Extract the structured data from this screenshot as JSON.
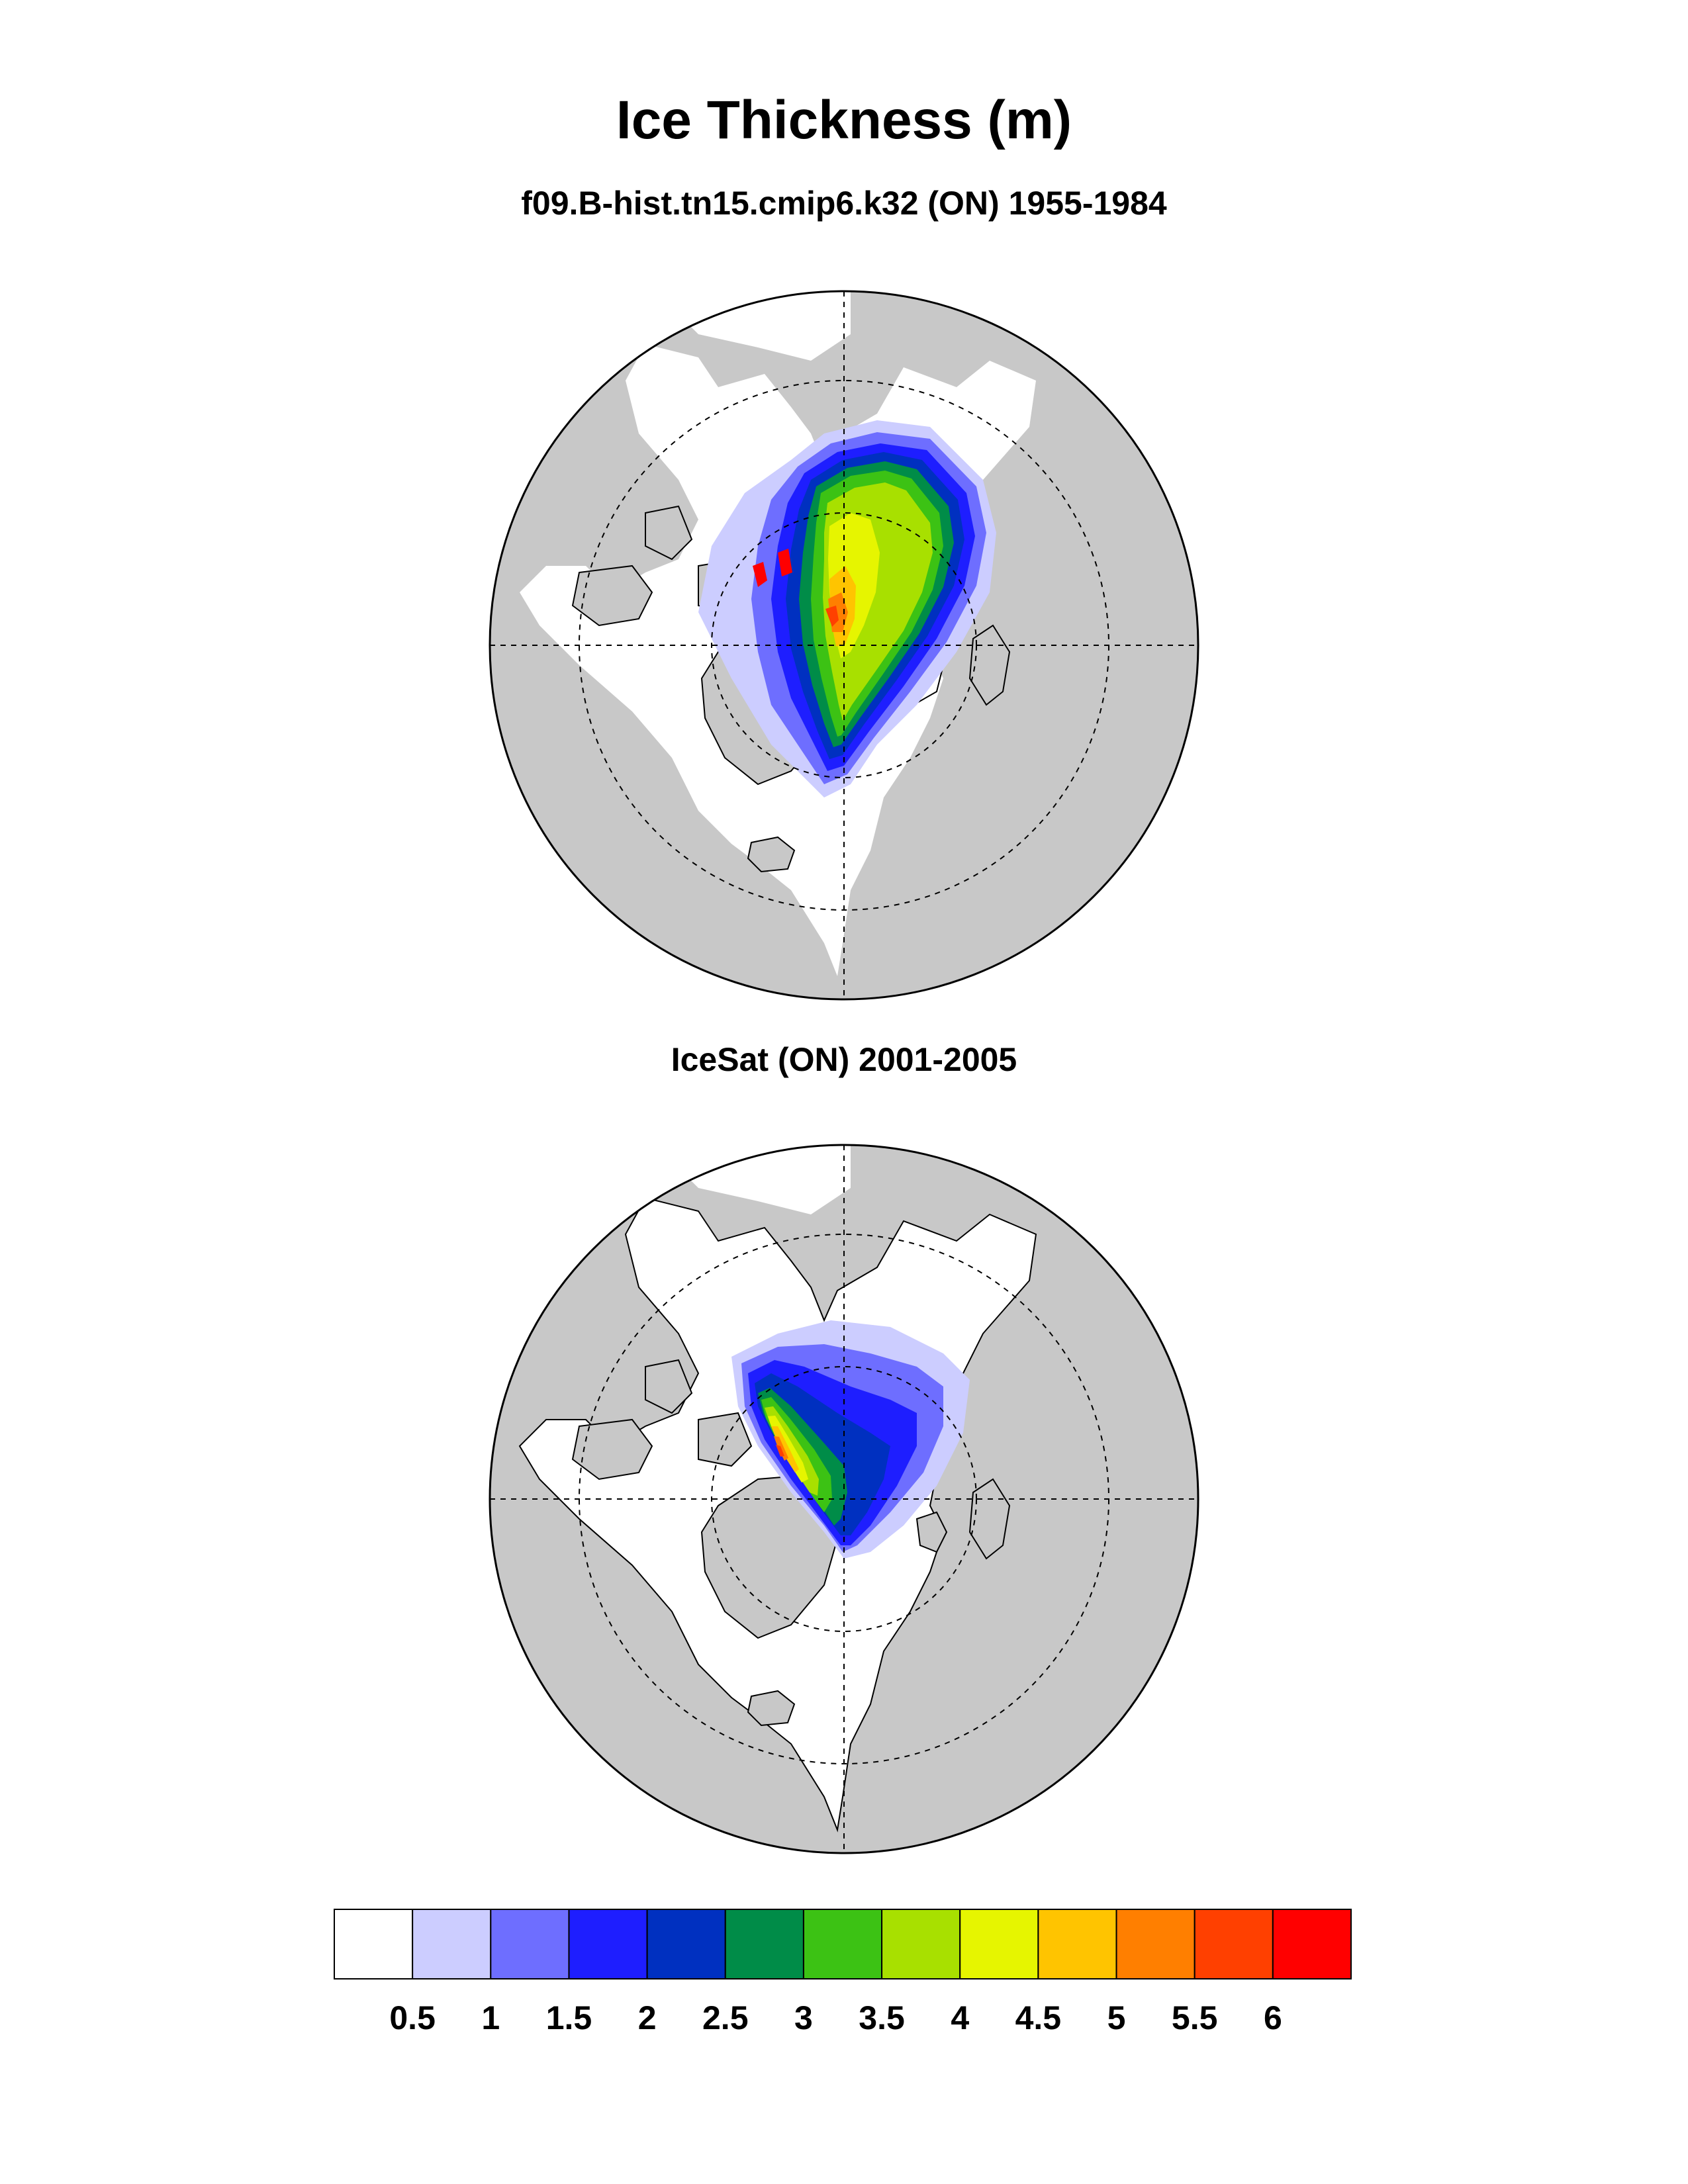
{
  "title": "Ice Thickness (m)",
  "panels": [
    {
      "subtitle": "f09.B-hist.tn15.cmip6.k32 (ON) 1955-1984"
    },
    {
      "subtitle": "IceSat (ON) 2001-2005"
    }
  ],
  "legend": {
    "colors": [
      "#ffffff",
      "#cccdff",
      "#6e6eff",
      "#1e1eff",
      "#0030c0",
      "#008c48",
      "#3cc214",
      "#a8e000",
      "#e6f500",
      "#ffc400",
      "#ff7f00",
      "#ff4000",
      "#ff0000"
    ],
    "labels": [
      "0.5",
      "1",
      "1.5",
      "2",
      "2.5",
      "3",
      "3.5",
      "4",
      "4.5",
      "5",
      "5.5",
      "6"
    ]
  },
  "colors": {
    "land": "#c8c8c8",
    "ocean": "#ffffff",
    "outline": "#000000"
  }
}
